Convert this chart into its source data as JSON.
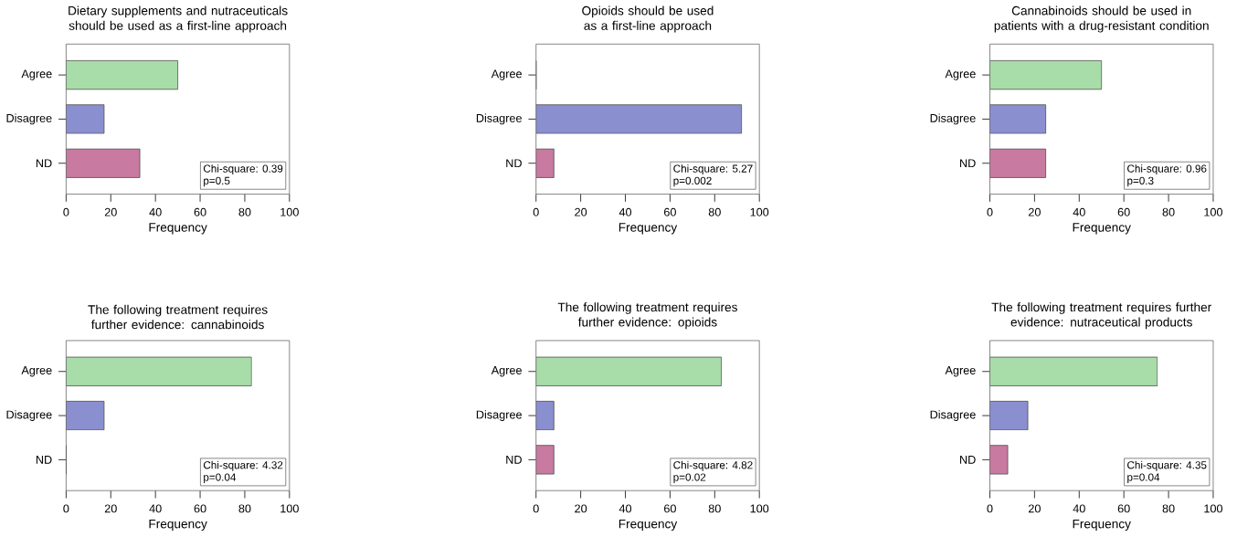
{
  "chart_data": [
    {
      "type": "bar",
      "orientation": "horizontal",
      "title": "Dietary supplements and nutraceuticals should be used as a first-line approach",
      "categories": [
        "Agree",
        "Disagree",
        "ND"
      ],
      "values": [
        50,
        17,
        33
      ],
      "colors": [
        "#a8dca8",
        "#8a8fd0",
        "#c87aa0"
      ],
      "xlabel": "Frequency",
      "xlim": [
        0,
        100
      ],
      "xticks": [
        0,
        20,
        40,
        60,
        80,
        100
      ],
      "annotations": [
        "Chi-square: 0.39",
        "p=0.5"
      ]
    },
    {
      "type": "bar",
      "orientation": "horizontal",
      "title": "Opioids should be used as a first-line approach",
      "categories": [
        "Agree",
        "Disagree",
        "ND"
      ],
      "values": [
        0,
        92,
        8
      ],
      "colors": [
        "#a8dca8",
        "#8a8fd0",
        "#c87aa0"
      ],
      "xlabel": "Frequency",
      "xlim": [
        0,
        100
      ],
      "xticks": [
        0,
        20,
        40,
        60,
        80,
        100
      ],
      "annotations": [
        "Chi-square: 5.27",
        "p=0.002"
      ]
    },
    {
      "type": "bar",
      "orientation": "horizontal",
      "title": "Cannabinoids should be used in patients with a drug-resistant condition",
      "categories": [
        "Agree",
        "Disagree",
        "ND"
      ],
      "values": [
        50,
        25,
        25
      ],
      "colors": [
        "#a8dca8",
        "#8a8fd0",
        "#c87aa0"
      ],
      "xlabel": "Frequency",
      "xlim": [
        0,
        100
      ],
      "xticks": [
        0,
        20,
        40,
        60,
        80,
        100
      ],
      "annotations": [
        "Chi-square: 0.96",
        "p=0.3"
      ]
    },
    {
      "type": "bar",
      "orientation": "horizontal",
      "title": "The following treatment requires further evidence: cannabinoids",
      "categories": [
        "Agree",
        "Disagree",
        "ND"
      ],
      "values": [
        83,
        17,
        0
      ],
      "colors": [
        "#a8dca8",
        "#8a8fd0",
        "#c87aa0"
      ],
      "xlabel": "Frequency",
      "xlim": [
        0,
        100
      ],
      "xticks": [
        0,
        20,
        40,
        60,
        80,
        100
      ],
      "annotations": [
        "Chi-square: 4.32",
        "p=0.04"
      ]
    },
    {
      "type": "bar",
      "orientation": "horizontal",
      "title": "The following treatment requires further evidence: opioids",
      "categories": [
        "Agree",
        "Disagree",
        "ND"
      ],
      "values": [
        83,
        8,
        8
      ],
      "colors": [
        "#a8dca8",
        "#8a8fd0",
        "#c87aa0"
      ],
      "xlabel": "Frequency",
      "xlim": [
        0,
        100
      ],
      "xticks": [
        0,
        20,
        40,
        60,
        80,
        100
      ],
      "annotations": [
        "Chi-square: 4.82",
        "p=0.02"
      ]
    },
    {
      "type": "bar",
      "orientation": "horizontal",
      "title": "The following treatment requires further evidence: nutraceutical products",
      "categories": [
        "Agree",
        "Disagree",
        "ND"
      ],
      "values": [
        75,
        17,
        8
      ],
      "colors": [
        "#a8dca8",
        "#8a8fd0",
        "#c87aa0"
      ],
      "xlabel": "Frequency",
      "xlim": [
        0,
        100
      ],
      "xticks": [
        0,
        20,
        40,
        60,
        80,
        100
      ],
      "annotations": [
        "Chi-square: 4.35",
        "p=0.04"
      ]
    }
  ]
}
